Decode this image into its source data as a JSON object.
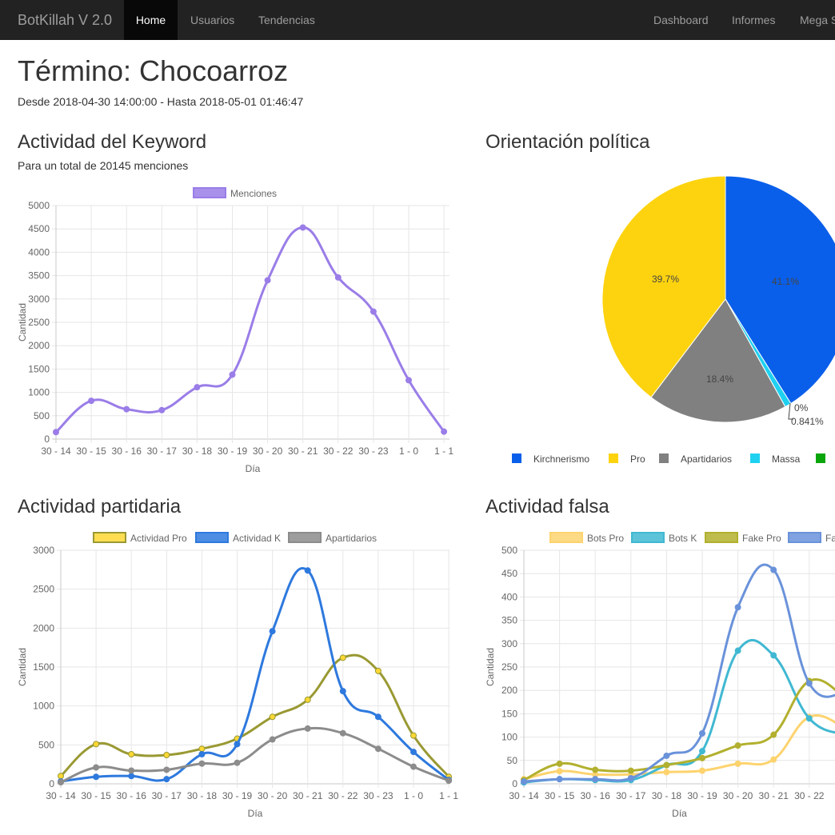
{
  "navbar": {
    "brand": "BotKillah V 2.0",
    "left_items": [
      {
        "label": "Home",
        "active": true
      },
      {
        "label": "Usuarios",
        "active": false
      },
      {
        "label": "Tendencias",
        "active": false
      }
    ],
    "right_items": [
      {
        "label": "Dashboard"
      },
      {
        "label": "Informes"
      },
      {
        "label": "Mega S"
      }
    ]
  },
  "header": {
    "title": "Término: Chocoarroz",
    "range": "Desde 2018-04-30 14:00:00 - Hasta 2018-05-01 01:46:47"
  },
  "keyword": {
    "title": "Actividad del Keyword",
    "subtitle": "Para un total de 20145 menciones"
  },
  "politica": {
    "title": "Orientación política"
  },
  "partidaria": {
    "title": "Actividad partidaria"
  },
  "falsa": {
    "title": "Actividad falsa"
  },
  "chart_data": [
    {
      "type": "line",
      "categories": [
        "30 - 14",
        "30 - 15",
        "30 - 16",
        "30 - 17",
        "30 - 18",
        "30 - 19",
        "30 - 20",
        "30 - 21",
        "30 - 22",
        "30 - 23",
        "1 - 0",
        "1 - 1"
      ],
      "series": [
        {
          "name": "Menciones",
          "color": "#9a7de8",
          "values": [
            150,
            820,
            640,
            620,
            1110,
            1380,
            3400,
            4530,
            3460,
            2730,
            1260,
            160
          ]
        }
      ],
      "xlabel": "Día",
      "ylabel": "Cantidad",
      "ylim": [
        0,
        5000
      ],
      "yticks": [
        0,
        500,
        1000,
        1500,
        2000,
        2500,
        3000,
        3500,
        4000,
        4500,
        5000
      ],
      "grid": true,
      "legend": "top"
    },
    {
      "type": "pie",
      "slices": [
        {
          "name": "Kirchnerismo",
          "value": 41.1,
          "label": "41.1%",
          "color": "#0a5fea"
        },
        {
          "name": "Massa",
          "value": 0.841,
          "label": "0.841%",
          "color": "#1fd1f0"
        },
        {
          "name": "",
          "value": 0,
          "label": "0%",
          "color": "#0aa50a"
        },
        {
          "name": "Apartidarios",
          "value": 18.4,
          "label": "18.4%",
          "color": "#808080"
        },
        {
          "name": "Pro",
          "value": 39.7,
          "label": "39.7%",
          "color": "#fdd30f"
        }
      ],
      "legend_entries": [
        {
          "name": "Kirchnerismo",
          "color": "#0a5fea"
        },
        {
          "name": "Pro",
          "color": "#fdd30f"
        },
        {
          "name": "Apartidarios",
          "color": "#808080"
        },
        {
          "name": "Massa",
          "color": "#1fd1f0"
        },
        {
          "name": "",
          "color": "#0aa50a"
        }
      ],
      "legend": "bottom"
    },
    {
      "type": "line",
      "categories": [
        "30 - 14",
        "30 - 15",
        "30 - 16",
        "30 - 17",
        "30 - 18",
        "30 - 19",
        "30 - 20",
        "30 - 21",
        "30 - 22",
        "30 - 23",
        "1 - 0",
        "1 - 1"
      ],
      "series": [
        {
          "name": "Actividad Pro",
          "color": "#999933",
          "fill": "#fdd835",
          "values": [
            100,
            510,
            380,
            370,
            450,
            580,
            860,
            1080,
            1620,
            1450,
            620,
            90
          ]
        },
        {
          "name": "Actividad K",
          "color": "#2e79de",
          "fill": "#2e79de",
          "values": [
            30,
            90,
            100,
            60,
            380,
            510,
            1960,
            2740,
            1190,
            860,
            410,
            50
          ]
        },
        {
          "name": "Apartidarios",
          "color": "#8c8c8c",
          "fill": "#8c8c8c",
          "values": [
            20,
            210,
            170,
            180,
            260,
            270,
            570,
            710,
            650,
            450,
            220,
            40
          ]
        }
      ],
      "xlabel": "Día",
      "ylabel": "Cantidad",
      "ylim": [
        0,
        3000
      ],
      "yticks": [
        0,
        500,
        1000,
        1500,
        2000,
        2500,
        3000
      ],
      "grid": true,
      "legend": "top"
    },
    {
      "type": "line",
      "categories": [
        "30 - 14",
        "30 - 15",
        "30 - 16",
        "30 - 17",
        "30 - 18",
        "30 - 19",
        "30 - 20",
        "30 - 21",
        "30 - 22",
        "3"
      ],
      "series": [
        {
          "name": "Bots Pro",
          "color": "#fdd36e",
          "values": [
            10,
            27,
            20,
            20,
            25,
            28,
            43,
            52,
            143,
            120
          ]
        },
        {
          "name": "Bots K",
          "color": "#40b8d2",
          "values": [
            3,
            10,
            8,
            8,
            40,
            70,
            285,
            275,
            140,
            105
          ]
        },
        {
          "name": "Fake Pro",
          "color": "#b2b02e",
          "values": [
            8,
            43,
            30,
            28,
            40,
            55,
            82,
            105,
            220,
            185
          ]
        },
        {
          "name": "Fa",
          "color": "#6a92da",
          "values": [
            5,
            10,
            10,
            12,
            60,
            108,
            378,
            458,
            215,
            195
          ]
        }
      ],
      "xlabel": "Día",
      "ylabel": "Cantidad",
      "ylim": [
        0,
        500
      ],
      "yticks": [
        0,
        50,
        100,
        150,
        200,
        250,
        300,
        350,
        400,
        450,
        500
      ],
      "grid": true,
      "legend": "top"
    }
  ]
}
